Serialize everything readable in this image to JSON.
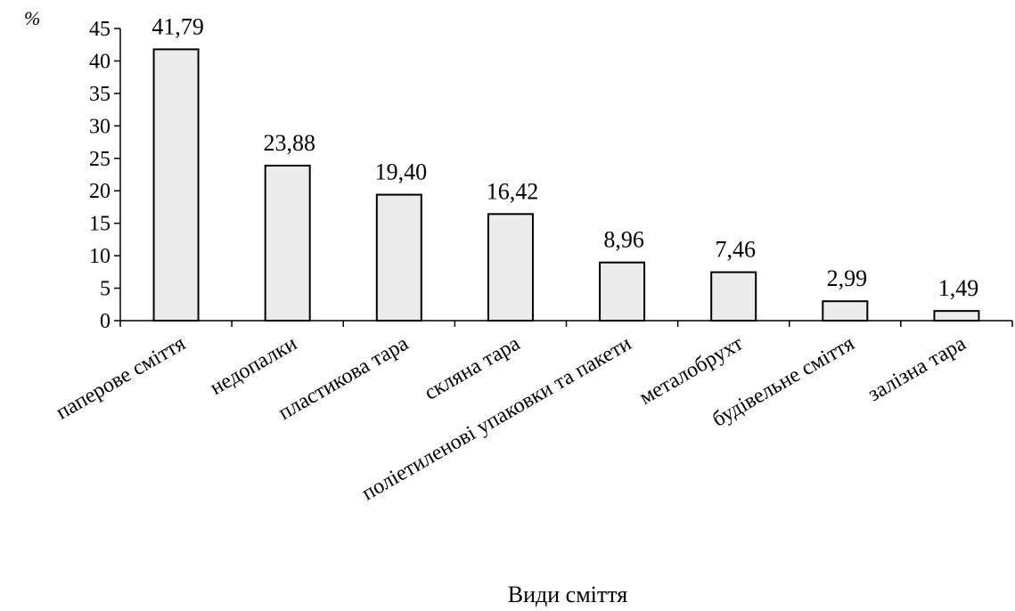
{
  "chart_data": {
    "type": "bar",
    "categories": [
      "паперове сміття",
      "недопалки",
      "пластикова тара",
      "скляна тара",
      "поліетиленові упаковки та пакети",
      "металобрухт",
      "будівельне сміття",
      "залізна тара"
    ],
    "values": [
      41.79,
      23.88,
      19.4,
      16.42,
      8.96,
      7.46,
      2.99,
      1.49
    ],
    "value_labels": [
      "41,79",
      "23,88",
      "19,40",
      "16,42",
      "8,96",
      "7,46",
      "2,99",
      "1,49"
    ],
    "xlabel": "Види сміття",
    "ylabel": "%",
    "ylim": [
      0,
      45
    ],
    "yticks": [
      0,
      5,
      10,
      15,
      20,
      25,
      30,
      35,
      40,
      45
    ],
    "grid": false,
    "bar_fill": "#ececec",
    "bar_stroke": "#000000"
  }
}
